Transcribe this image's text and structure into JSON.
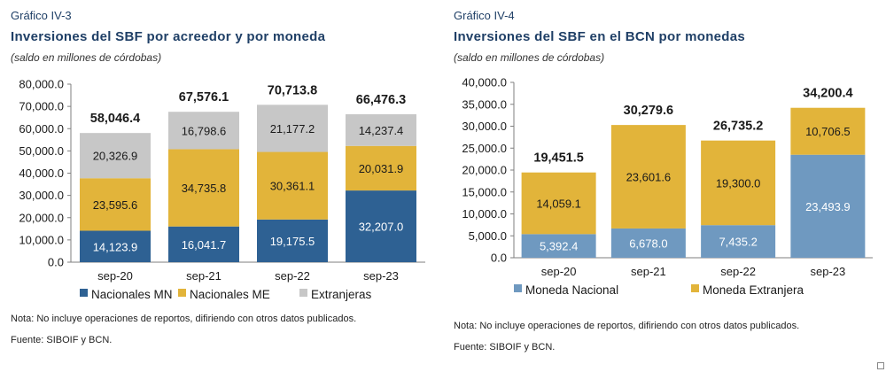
{
  "figures": [
    {
      "label": "Gráfico IV-3",
      "title": "Inversiones del SBF por acreedor y por moneda",
      "subtitle": "(saldo en millones de córdobas)",
      "note": "Nota: No incluye operaciones de reportos, difiriendo con otros datos publicados.",
      "source": "Fuente: SIBOIF y BCN."
    },
    {
      "label": "Gráfico IV-4",
      "title": "Inversiones del SBF en el BCN por monedas",
      "subtitle": "(saldo en millones de córdobas)",
      "note": "Nota: No incluye operaciones de reportos, difiriendo con otros datos publicados.",
      "source": "Fuente: SIBOIF y BCN."
    }
  ],
  "chart_data": [
    {
      "type": "bar",
      "stacked": true,
      "categories": [
        "sep-20",
        "sep-21",
        "sep-22",
        "sep-23"
      ],
      "ylim": [
        0,
        80000
      ],
      "yticks": [
        "0.0",
        "10,000.0",
        "20,000.0",
        "30,000.0",
        "40,000.0",
        "50,000.0",
        "60,000.0",
        "70,000.0",
        "80,000.0"
      ],
      "series": [
        {
          "name": "Nacionales MN",
          "color": "#2e6193",
          "label_color": "#ffffff",
          "values": [
            14123.9,
            16041.7,
            19175.5,
            32207.0
          ],
          "labels": [
            "14,123.9",
            "16,041.7",
            "19,175.5",
            "32,207.0"
          ]
        },
        {
          "name": "Nacionales ME",
          "color": "#e2b43a",
          "label_color": "#1a1a1a",
          "values": [
            23595.6,
            34735.8,
            30361.1,
            20031.9
          ],
          "labels": [
            "23,595.6",
            "34,735.8",
            "30,361.1",
            "20,031.9"
          ]
        },
        {
          "name": "Extranjeras",
          "color": "#c7c7c7",
          "label_color": "#1a1a1a",
          "values": [
            20326.9,
            16798.6,
            21177.2,
            14237.4
          ],
          "labels": [
            "20,326.9",
            "16,798.6",
            "21,177.2",
            "14,237.4"
          ]
        }
      ],
      "totals": [
        58046.4,
        67576.1,
        70713.8,
        66476.3
      ],
      "total_labels": [
        "58,046.4",
        "67,576.1",
        "70,713.8",
        "66,476.3"
      ],
      "legend": "bottom",
      "grid": false
    },
    {
      "type": "bar",
      "stacked": true,
      "categories": [
        "sep-20",
        "sep-21",
        "sep-22",
        "sep-23"
      ],
      "ylim": [
        0,
        40000
      ],
      "yticks": [
        "0.0",
        "5,000.0",
        "10,000.0",
        "15,000.0",
        "20,000.0",
        "25,000.0",
        "30,000.0",
        "35,000.0",
        "40,000.0"
      ],
      "series": [
        {
          "name": "Moneda Nacional",
          "color": "#6f99c0",
          "label_color": "#ffffff",
          "values": [
            5392.4,
            6678.0,
            7435.2,
            23493.9
          ],
          "labels": [
            "5,392.4",
            "6,678.0",
            "7,435.2",
            "23,493.9"
          ]
        },
        {
          "name": "Moneda Extranjera",
          "color": "#e2b43a",
          "label_color": "#1a1a1a",
          "values": [
            14059.1,
            23601.6,
            19300.0,
            10706.5
          ],
          "labels": [
            "14,059.1",
            "23,601.6",
            "19,300.0",
            "10,706.5"
          ]
        }
      ],
      "totals": [
        19451.5,
        30279.6,
        26735.2,
        34200.4
      ],
      "total_labels": [
        "19,451.5",
        "30,279.6",
        "26,735.2",
        "34,200.4"
      ],
      "legend": "bottom",
      "grid": false
    }
  ]
}
